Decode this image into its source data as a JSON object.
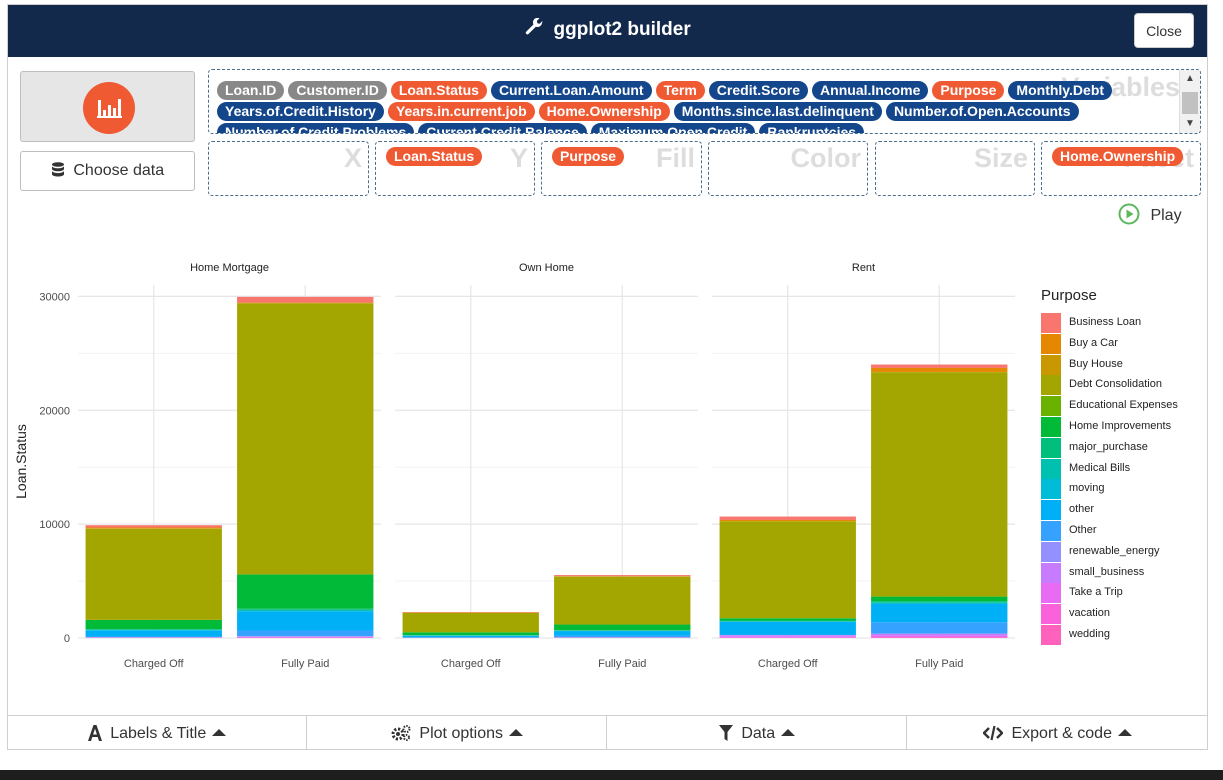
{
  "header": {
    "title": "ggplot2 builder",
    "close_label": "Close",
    "icon": "wrench-icon"
  },
  "sidebar": {
    "logo_icon": "bar-chart-icon",
    "choose_data_label": "Choose data",
    "choose_data_icon": "database-icon"
  },
  "variables": {
    "label": "Variables",
    "items": [
      {
        "name": "Loan.ID",
        "color": "gray"
      },
      {
        "name": "Customer.ID",
        "color": "gray"
      },
      {
        "name": "Loan.Status",
        "color": "orange"
      },
      {
        "name": "Current.Loan.Amount",
        "color": "blue"
      },
      {
        "name": "Term",
        "color": "orange"
      },
      {
        "name": "Credit.Score",
        "color": "blue"
      },
      {
        "name": "Annual.Income",
        "color": "blue"
      },
      {
        "name": "Purpose",
        "color": "orange"
      },
      {
        "name": "Monthly.Debt",
        "color": "blue"
      },
      {
        "name": "Years.of.Credit.History",
        "color": "blue"
      },
      {
        "name": "Years.in.current.job",
        "color": "orange"
      },
      {
        "name": "Home.Ownership",
        "color": "orange"
      },
      {
        "name": "Months.since.last.delinquent",
        "color": "blue"
      },
      {
        "name": "Number.of.Open.Accounts",
        "color": "blue"
      },
      {
        "name": "Number.of.Credit.Problems",
        "color": "blue"
      },
      {
        "name": "Current.Credit.Balance",
        "color": "blue"
      },
      {
        "name": "Maximum.Open.Credit",
        "color": "blue"
      },
      {
        "name": "Bankruptcies",
        "color": "blue"
      }
    ]
  },
  "slots": [
    {
      "label": "X",
      "value": ""
    },
    {
      "label": "Y",
      "value": "Loan.Status"
    },
    {
      "label": "Fill",
      "value": "Purpose"
    },
    {
      "label": "Color",
      "value": ""
    },
    {
      "label": "Size",
      "value": ""
    },
    {
      "label": "Facet",
      "value": "Home.Ownership"
    }
  ],
  "play_label": "Play",
  "colors": {
    "header": "#13294b",
    "orange": "#ef5a33",
    "blue": "#14468c",
    "gray": "#888888"
  },
  "chart_data": {
    "type": "bar",
    "stacked": true,
    "facets": [
      "Home Mortgage",
      "Own Home",
      "Rent"
    ],
    "categories": [
      "Charged Off",
      "Fully Paid"
    ],
    "ylabel": "Loan.Status",
    "xlabel": "",
    "ylim": [
      0,
      31000
    ],
    "yticks": [
      0,
      10000,
      20000,
      30000
    ],
    "legend_title": "Purpose",
    "legend_position": "right",
    "series": [
      {
        "name": "Business Loan",
        "color": "#F8766D",
        "values": [
          [
            200,
            500
          ],
          [
            40,
            100
          ],
          [
            300,
            300
          ]
        ]
      },
      {
        "name": "Buy a Car",
        "color": "#E58700",
        "values": [
          [
            80,
            50
          ],
          [
            30,
            30
          ],
          [
            100,
            350
          ]
        ]
      },
      {
        "name": "Buy House",
        "color": "#C99800",
        "values": [
          [
            30,
            20
          ],
          [
            10,
            10
          ],
          [
            20,
            20
          ]
        ]
      },
      {
        "name": "Debt Consolidation",
        "color": "#A3A500",
        "values": [
          [
            8000,
            23800
          ],
          [
            1700,
            4200
          ],
          [
            8500,
            19700
          ]
        ]
      },
      {
        "name": "Educational Expenses",
        "color": "#6BB100",
        "values": [
          [
            10,
            10
          ],
          [
            5,
            5
          ],
          [
            10,
            10
          ]
        ]
      },
      {
        "name": "Home Improvements",
        "color": "#00BA38",
        "values": [
          [
            800,
            3000
          ],
          [
            250,
            500
          ],
          [
            200,
            400
          ]
        ]
      },
      {
        "name": "major_purchase",
        "color": "#00BF7D",
        "values": [
          [
            50,
            100
          ],
          [
            20,
            30
          ],
          [
            50,
            100
          ]
        ]
      },
      {
        "name": "Medical Bills",
        "color": "#00C0AF",
        "values": [
          [
            50,
            100
          ],
          [
            20,
            30
          ],
          [
            50,
            100
          ]
        ]
      },
      {
        "name": "moving",
        "color": "#00BCD8",
        "values": [
          [
            10,
            20
          ],
          [
            5,
            10
          ],
          [
            30,
            50
          ]
        ]
      },
      {
        "name": "other",
        "color": "#00B0F6",
        "values": [
          [
            550,
            1700
          ],
          [
            150,
            400
          ],
          [
            1100,
            1600
          ]
        ]
      },
      {
        "name": "Other",
        "color": "#35A2FF",
        "values": [
          [
            50,
            500
          ],
          [
            20,
            150
          ],
          [
            50,
            1000
          ]
        ]
      },
      {
        "name": "renewable_energy",
        "color": "#9590FF",
        "values": [
          [
            5,
            5
          ],
          [
            2,
            2
          ],
          [
            5,
            5
          ]
        ]
      },
      {
        "name": "small_business",
        "color": "#C77CFF",
        "values": [
          [
            20,
            50
          ],
          [
            10,
            20
          ],
          [
            100,
            150
          ]
        ]
      },
      {
        "name": "Take a Trip",
        "color": "#E76BF3",
        "values": [
          [
            30,
            60
          ],
          [
            10,
            20
          ],
          [
            100,
            150
          ]
        ]
      },
      {
        "name": "vacation",
        "color": "#FA62DB",
        "values": [
          [
            10,
            20
          ],
          [
            5,
            10
          ],
          [
            30,
            40
          ]
        ]
      },
      {
        "name": "wedding",
        "color": "#FF62BC",
        "values": [
          [
            10,
            20
          ],
          [
            5,
            10
          ],
          [
            20,
            40
          ]
        ]
      }
    ]
  },
  "tabs": [
    {
      "label": "Labels & Title",
      "icon": "font-icon"
    },
    {
      "label": "Plot options",
      "icon": "gears-icon"
    },
    {
      "label": "Data",
      "icon": "filter-icon"
    },
    {
      "label": "Export & code",
      "icon": "code-icon"
    }
  ]
}
